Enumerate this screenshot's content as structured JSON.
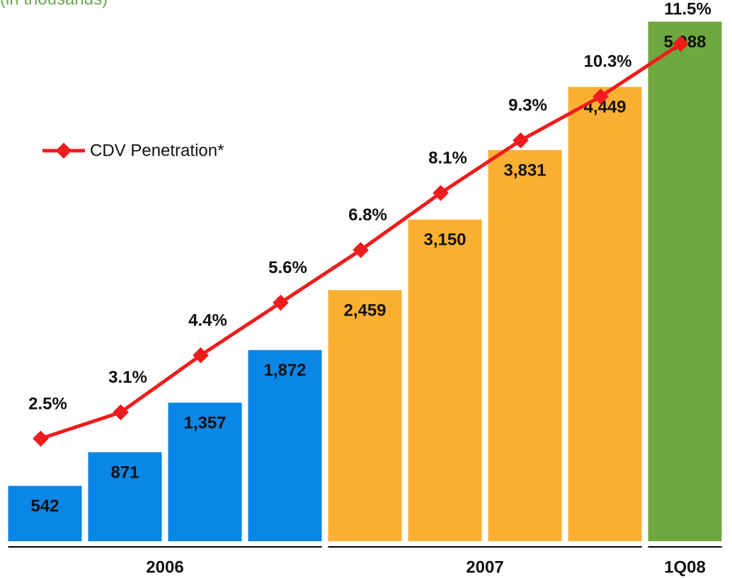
{
  "chart_data": {
    "type": "bar",
    "subtitle": "(in thousands)",
    "categories": [
      null,
      null,
      null,
      null,
      null,
      null,
      null,
      null,
      null
    ],
    "groups": [
      {
        "label": "2006",
        "start": 0,
        "end": 3
      },
      {
        "label": "2007",
        "start": 4,
        "end": 7
      },
      {
        "label": "1Q08",
        "start": 8,
        "end": 8
      }
    ],
    "values": [
      542,
      871,
      1357,
      1872,
      2459,
      3150,
      3831,
      4449,
      5088
    ],
    "value_labels": [
      "542",
      "871",
      "1,357",
      "1,872",
      "2,459",
      "3,150",
      "3,831",
      "4,449",
      "5,088"
    ],
    "colors": [
      "#0a86e6",
      "#0a86e6",
      "#0a86e6",
      "#0a86e6",
      "#fbb034",
      "#fbb034",
      "#fbb034",
      "#fbb034",
      "#6ea83e"
    ],
    "ylim": [
      0,
      5300
    ],
    "line": {
      "name": "CDV Penetration*",
      "color": "#ee1c1c",
      "axis": "y2",
      "values": [
        2.5,
        3.1,
        4.4,
        5.6,
        6.8,
        8.1,
        9.3,
        10.3,
        11.5
      ],
      "value_labels": [
        "2.5%",
        "3.1%",
        "4.4%",
        "5.6%",
        "6.8%",
        "8.1%",
        "9.3%",
        "10.3%",
        "11.5%"
      ]
    },
    "y2lim": [
      0,
      12.5
    ]
  }
}
